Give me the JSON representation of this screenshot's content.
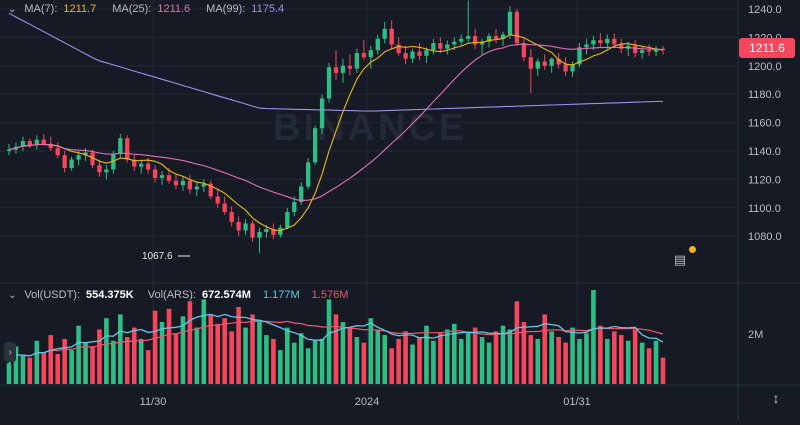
{
  "legend_main": {
    "ma7_label": "MA(7):",
    "ma7_value": "1211.7",
    "ma25_label": "MA(25):",
    "ma25_value": "1211.6",
    "ma99_label": "MA(99):",
    "ma99_value": "1175.4"
  },
  "legend_volume": {
    "vol_usdt_label": "Vol(USDT):",
    "vol_usdt_value": "554.375K",
    "vol_ars_label": "Vol(ARS):",
    "vol_ars_value": "672.574M",
    "ma_a_value": "1.177M",
    "ma_b_value": "1.576M"
  },
  "watermark": "BINANCE",
  "current_price": "1211.6",
  "low_marker": "1067.6",
  "colors": {
    "background": "#161a25",
    "up": "#2ebd85",
    "down": "#f6465d",
    "ma7": "#f0b90b",
    "ma25": "#e36fb5",
    "ma99": "#9f8fe8",
    "vol_ma_a": "#5ec7e6",
    "vol_ma_b": "#f0566e",
    "grid": "#232833"
  },
  "icons": {
    "collapse": "chevron-down-icon",
    "book": "order-book-icon",
    "fit": "fit-screen-icon",
    "expand": "chevron-right-icon"
  },
  "chart_data": {
    "type": "candlestick",
    "price_axis": {
      "ticks": [
        "1240.0",
        "1220.0",
        "1200.0",
        "1180.0",
        "1160.0",
        "1140.0",
        "1120.0",
        "1100.0",
        "1080.0"
      ],
      "ylim": [
        1068,
        1242
      ]
    },
    "volume_axis": {
      "ticks": [
        "2M"
      ]
    },
    "x_ticks": [
      "11/30",
      "2024",
      "01/31"
    ],
    "candles_ohlc": [
      [
        1140,
        1145,
        1137,
        1141
      ],
      [
        1141,
        1146,
        1138,
        1143
      ],
      [
        1143,
        1150,
        1140,
        1147
      ],
      [
        1147,
        1149,
        1142,
        1144
      ],
      [
        1144,
        1151,
        1141,
        1148
      ],
      [
        1148,
        1152,
        1144,
        1145
      ],
      [
        1145,
        1150,
        1140,
        1142
      ],
      [
        1142,
        1146,
        1135,
        1137
      ],
      [
        1137,
        1140,
        1125,
        1128
      ],
      [
        1128,
        1136,
        1126,
        1134
      ],
      [
        1134,
        1140,
        1130,
        1137
      ],
      [
        1137,
        1142,
        1133,
        1139
      ],
      [
        1139,
        1141,
        1128,
        1130
      ],
      [
        1130,
        1134,
        1122,
        1125
      ],
      [
        1125,
        1130,
        1120,
        1127
      ],
      [
        1127,
        1140,
        1124,
        1138
      ],
      [
        1138,
        1152,
        1135,
        1149
      ],
      [
        1149,
        1151,
        1132,
        1134
      ],
      [
        1134,
        1138,
        1126,
        1129
      ],
      [
        1129,
        1134,
        1124,
        1131
      ],
      [
        1131,
        1135,
        1124,
        1127
      ],
      [
        1127,
        1130,
        1118,
        1121
      ],
      [
        1121,
        1126,
        1116,
        1123
      ],
      [
        1123,
        1128,
        1117,
        1119
      ],
      [
        1119,
        1124,
        1113,
        1116
      ],
      [
        1116,
        1122,
        1112,
        1119
      ],
      [
        1119,
        1123,
        1110,
        1113
      ],
      [
        1113,
        1118,
        1108,
        1115
      ],
      [
        1115,
        1120,
        1111,
        1117
      ],
      [
        1117,
        1119,
        1106,
        1108
      ],
      [
        1108,
        1113,
        1100,
        1103
      ],
      [
        1103,
        1108,
        1095,
        1097
      ],
      [
        1097,
        1101,
        1087,
        1090
      ],
      [
        1090,
        1094,
        1080,
        1084
      ],
      [
        1084,
        1092,
        1081,
        1089
      ],
      [
        1089,
        1091,
        1076,
        1079
      ],
      [
        1079,
        1086,
        1068,
        1083
      ],
      [
        1083,
        1088,
        1079,
        1085
      ],
      [
        1085,
        1089,
        1078,
        1081
      ],
      [
        1081,
        1088,
        1079,
        1086
      ],
      [
        1086,
        1100,
        1085,
        1097
      ],
      [
        1097,
        1108,
        1094,
        1104
      ],
      [
        1104,
        1118,
        1102,
        1115
      ],
      [
        1115,
        1135,
        1113,
        1132
      ],
      [
        1132,
        1158,
        1130,
        1156
      ],
      [
        1156,
        1180,
        1152,
        1177
      ],
      [
        1177,
        1202,
        1174,
        1199
      ],
      [
        1199,
        1211,
        1190,
        1195
      ],
      [
        1195,
        1205,
        1188,
        1200
      ],
      [
        1200,
        1208,
        1193,
        1198
      ],
      [
        1198,
        1212,
        1195,
        1209
      ],
      [
        1209,
        1218,
        1204,
        1206
      ],
      [
        1206,
        1214,
        1198,
        1211
      ],
      [
        1211,
        1222,
        1208,
        1219
      ],
      [
        1219,
        1231,
        1216,
        1226
      ],
      [
        1226,
        1232,
        1212,
        1215
      ],
      [
        1215,
        1220,
        1207,
        1209
      ],
      [
        1209,
        1214,
        1201,
        1205
      ],
      [
        1205,
        1212,
        1202,
        1210
      ],
      [
        1210,
        1216,
        1204,
        1207
      ],
      [
        1207,
        1213,
        1202,
        1211
      ],
      [
        1211,
        1219,
        1208,
        1216
      ],
      [
        1216,
        1220,
        1209,
        1212
      ],
      [
        1212,
        1218,
        1208,
        1215
      ],
      [
        1215,
        1220,
        1211,
        1217
      ],
      [
        1217,
        1222,
        1214,
        1219
      ],
      [
        1219,
        1246,
        1216,
        1221
      ],
      [
        1221,
        1226,
        1212,
        1215
      ],
      [
        1215,
        1219,
        1208,
        1217
      ],
      [
        1217,
        1223,
        1213,
        1221
      ],
      [
        1221,
        1226,
        1216,
        1219
      ],
      [
        1219,
        1224,
        1214,
        1222
      ],
      [
        1222,
        1242,
        1219,
        1238
      ],
      [
        1238,
        1240,
        1214,
        1216
      ],
      [
        1216,
        1220,
        1203,
        1206
      ],
      [
        1206,
        1212,
        1181,
        1198
      ],
      [
        1198,
        1205,
        1193,
        1203
      ],
      [
        1203,
        1208,
        1197,
        1200
      ],
      [
        1200,
        1206,
        1195,
        1205
      ],
      [
        1205,
        1209,
        1198,
        1201
      ],
      [
        1201,
        1206,
        1193,
        1196
      ],
      [
        1196,
        1203,
        1192,
        1201
      ],
      [
        1201,
        1216,
        1199,
        1213
      ],
      [
        1213,
        1219,
        1208,
        1215
      ],
      [
        1215,
        1221,
        1211,
        1218
      ],
      [
        1218,
        1223,
        1213,
        1216
      ],
      [
        1216,
        1222,
        1212,
        1219
      ],
      [
        1219,
        1223,
        1213,
        1215
      ],
      [
        1215,
        1219,
        1209,
        1212
      ],
      [
        1212,
        1217,
        1207,
        1214
      ],
      [
        1214,
        1218,
        1206,
        1209
      ],
      [
        1209,
        1214,
        1205,
        1211
      ],
      [
        1211,
        1215,
        1207,
        1210
      ],
      [
        1210,
        1214,
        1207,
        1212
      ],
      [
        1212,
        1214,
        1208,
        1211
      ]
    ],
    "volume_heights": [
      0.22,
      0.4,
      0.3,
      0.28,
      0.46,
      0.34,
      0.52,
      0.32,
      0.48,
      0.36,
      0.62,
      0.44,
      0.4,
      0.58,
      0.7,
      0.46,
      0.74,
      0.5,
      0.6,
      0.48,
      0.36,
      0.78,
      0.66,
      0.8,
      0.54,
      0.72,
      0.88,
      0.6,
      0.9,
      0.74,
      0.64,
      0.7,
      0.56,
      0.82,
      0.6,
      0.74,
      0.68,
      0.52,
      0.48,
      0.36,
      0.6,
      0.44,
      0.54,
      0.38,
      0.46,
      0.48,
      0.9,
      0.74,
      0.66,
      0.6,
      0.5,
      0.44,
      0.7,
      0.58,
      0.52,
      0.38,
      0.48,
      0.56,
      0.42,
      0.5,
      0.62,
      0.46,
      0.54,
      0.58,
      0.64,
      0.48,
      0.54,
      0.6,
      0.5,
      0.44,
      0.56,
      0.62,
      0.58,
      0.88,
      0.66,
      0.52,
      0.48,
      0.74,
      0.56,
      0.5,
      0.44,
      0.6,
      0.48,
      0.54,
      1.0,
      0.62,
      0.48,
      0.56,
      0.52,
      0.46,
      0.58,
      0.44,
      0.38,
      0.46,
      0.28
    ]
  }
}
